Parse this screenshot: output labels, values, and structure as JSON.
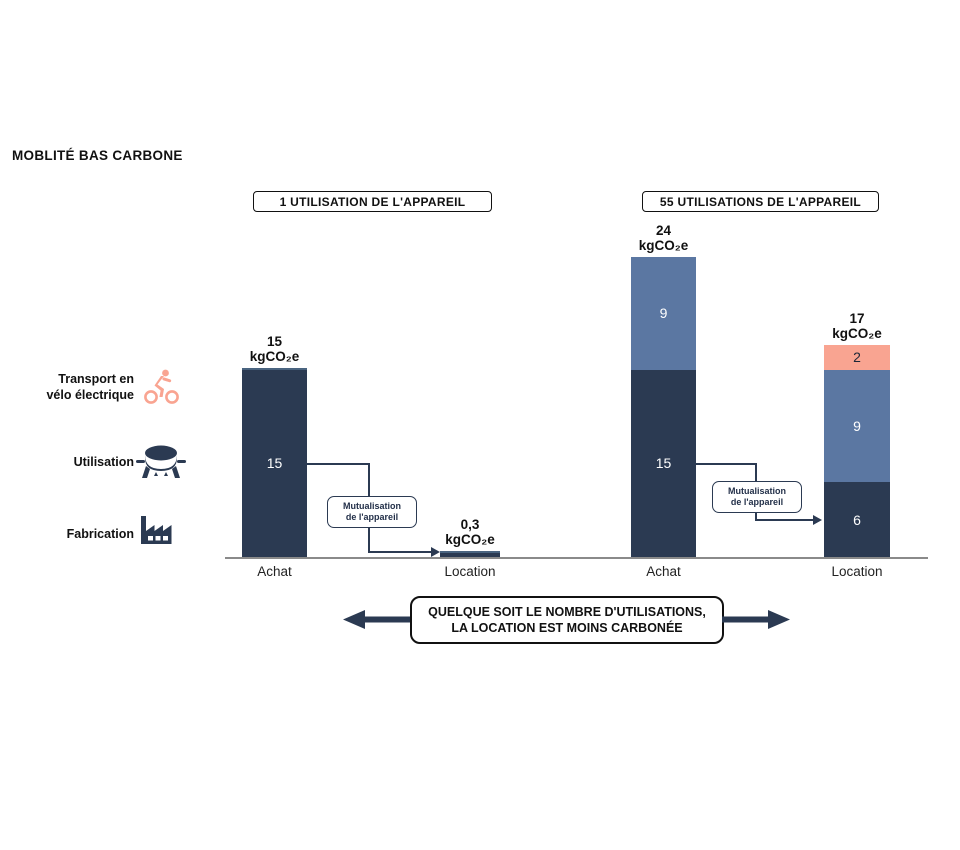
{
  "title": "MOBLITÉ BAS CARBONE",
  "colors": {
    "navy": "#2b3a52",
    "blue": "#5b77a2",
    "salmon": "#f9a491",
    "axis": "#8a8a8a"
  },
  "legend": {
    "items": [
      {
        "label": "Transport en\nvélo électrique",
        "icon": "ebike-icon",
        "color": "#f9a491"
      },
      {
        "label": "Utilisation",
        "icon": "cooking-appliance-icon",
        "color": "#2b3a52"
      },
      {
        "label": "Fabrication",
        "icon": "factory-icon",
        "color": "#2b3a52"
      }
    ]
  },
  "chart_data": {
    "type": "bar",
    "stacked": true,
    "unit": "kgCO₂e",
    "ylim": [
      0,
      24
    ],
    "grid": false,
    "legend_series": [
      "Transport en vélo électrique",
      "Utilisation",
      "Fabrication"
    ],
    "groups": [
      {
        "title": "1 UTILISATION DE L'APPAREIL",
        "bars": [
          {
            "category": "Achat",
            "total": 15,
            "total_label": "15\nkgCO₂e",
            "segments": [
              {
                "series": "Fabrication",
                "value": 15,
                "color": "navy",
                "label": "15",
                "label_color": "#ffffff"
              }
            ]
          },
          {
            "category": "Location",
            "total": 0.3,
            "total_label": "0,3\nkgCO₂e",
            "segments": [
              {
                "series": "Fabrication",
                "value": 0.3,
                "color": "navy",
                "label": "",
                "label_color": "#ffffff"
              }
            ]
          }
        ]
      },
      {
        "title": "55 UTILISATIONS DE L'APPAREIL",
        "bars": [
          {
            "category": "Achat",
            "total": 24,
            "total_label": "24\nkgCO₂e",
            "segments": [
              {
                "series": "Utilisation",
                "value": 9,
                "color": "blue",
                "label": "9",
                "label_color": "#ffffff"
              },
              {
                "series": "Fabrication",
                "value": 15,
                "color": "navy",
                "label": "15",
                "label_color": "#ffffff"
              }
            ]
          },
          {
            "category": "Location",
            "total": 17,
            "total_label": "17\nkgCO₂e",
            "segments": [
              {
                "series": "Transport en vélo électrique",
                "value": 2,
                "color": "salmon",
                "label": "2",
                "label_color": "#1c2637"
              },
              {
                "series": "Utilisation",
                "value": 9,
                "color": "blue",
                "label": "9",
                "label_color": "#ffffff"
              },
              {
                "series": "Fabrication",
                "value": 6,
                "color": "navy",
                "label": "6",
                "label_color": "#ffffff"
              }
            ]
          }
        ]
      }
    ]
  },
  "annotations": {
    "mutualisation_label": "Mutualisation\nde l'appareil",
    "banner": "QUELQUE SOIT LE NOMBRE D'UTILISATIONS,\nLA LOCATION EST MOINS CARBONÉE"
  }
}
